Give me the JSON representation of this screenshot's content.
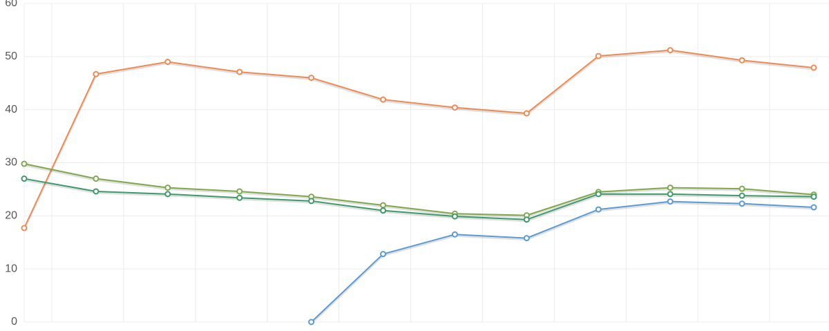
{
  "chart_data": {
    "type": "line",
    "categories": [
      null,
      null,
      null,
      null,
      null,
      null,
      null,
      null,
      null,
      null,
      null,
      null
    ],
    "series": [
      {
        "color": "#ef8a52",
        "values": [
          17.7,
          46.7,
          49.0,
          47.1,
          46.0,
          41.9,
          40.4,
          39.3,
          50.1,
          51.2,
          49.3,
          47.9
        ]
      },
      {
        "color": "#7fa84a",
        "values": [
          29.8,
          27.0,
          25.3,
          24.6,
          23.6,
          22.0,
          20.4,
          20.1,
          24.5,
          25.3,
          25.1,
          24.0
        ]
      },
      {
        "color": "#3d9a6a",
        "values": [
          27.0,
          24.6,
          24.1,
          23.4,
          22.8,
          21.0,
          19.9,
          19.3,
          24.1,
          24.1,
          23.8,
          23.6
        ]
      },
      {
        "color": "#5b9bd5",
        "values": [
          null,
          null,
          null,
          null,
          0,
          12.8,
          16.5,
          15.8,
          21.2,
          22.7,
          22.3,
          21.6
        ]
      }
    ],
    "ylim": [
      0,
      60
    ],
    "yticks": [
      0,
      10,
      20,
      30,
      40,
      50,
      60
    ],
    "grid": true
  }
}
